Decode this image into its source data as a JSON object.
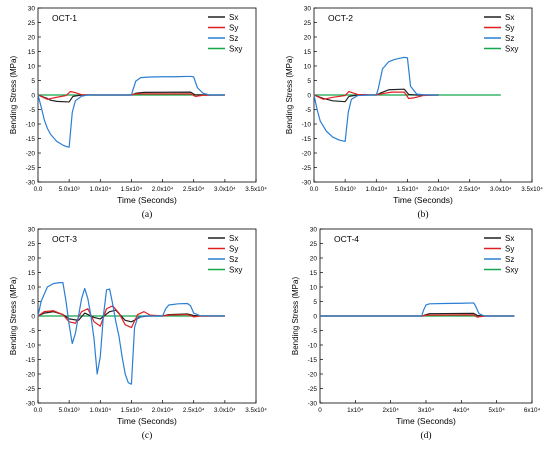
{
  "chart_data": [
    {
      "type": "line",
      "title": "OCT-1",
      "caption": "(a)",
      "xlabel": "Time (Seconds)",
      "ylabel": "Bending Stress (MPa)",
      "xlim": [
        0,
        35000
      ],
      "ylim": [
        -30,
        30
      ],
      "xticks": [
        0,
        5000,
        10000,
        15000,
        20000,
        25000,
        30000,
        35000
      ],
      "xtick_labels": [
        "0.0",
        "5.0x10³",
        "1.0x10⁴",
        "1.5x10⁴",
        "2.0x10⁴",
        "2.5x10⁴",
        "3.0x10⁴",
        "3.5x10⁴"
      ],
      "yticks": [
        -30,
        -25,
        -20,
        -15,
        -10,
        -5,
        0,
        5,
        10,
        15,
        20,
        25,
        30
      ],
      "ytick_labels": [
        "-30",
        "-25",
        "-20",
        "-15",
        "-10",
        "-5",
        "0",
        "5",
        "10",
        "15",
        "20",
        "25",
        "30"
      ],
      "legend_position": "top-right",
      "grid": false,
      "series": [
        {
          "name": "Sx",
          "color": "#222222",
          "x": [
            0,
            1500,
            2000,
            3000,
            5000,
            5600,
            7000,
            15000,
            15700,
            17000,
            24500,
            25200,
            27000,
            30000
          ],
          "y": [
            0,
            -1.2,
            -1.8,
            -2.2,
            -2.4,
            -0.5,
            0,
            0,
            0.6,
            0.9,
            1.0,
            0.1,
            0,
            0
          ]
        },
        {
          "name": "Sy",
          "color": "#e02020",
          "x": [
            0,
            1500,
            2500,
            4500,
            5200,
            6000,
            7000,
            9000,
            15000,
            15700,
            24500,
            25300,
            26500,
            30000
          ],
          "y": [
            0,
            -1.5,
            -1.0,
            -0.2,
            1.2,
            0.8,
            0.1,
            0,
            0,
            0.4,
            0.4,
            -0.5,
            -0.1,
            0
          ]
        },
        {
          "name": "Sz",
          "color": "#2a7fd4",
          "x": [
            0,
            500,
            1000,
            1500,
            2000,
            3000,
            4000,
            4600,
            5000,
            5500,
            6000,
            7000,
            8000,
            10000,
            15000,
            15200,
            15700,
            16500,
            18000,
            20000,
            22000,
            24000,
            24600,
            25000,
            25600,
            26500,
            27500,
            30000
          ],
          "y": [
            0,
            -4,
            -8.5,
            -11.5,
            -13.5,
            -16,
            -17.3,
            -17.8,
            -18,
            -6,
            -2,
            -0.4,
            0,
            0,
            0,
            1.5,
            4.8,
            6,
            6.2,
            6.3,
            6.3,
            6.4,
            6.4,
            6.2,
            2.5,
            0.6,
            0,
            0
          ]
        },
        {
          "name": "Sxy",
          "color": "#14a84a",
          "x": [
            0,
            30000
          ],
          "y": [
            0,
            0
          ]
        }
      ]
    },
    {
      "type": "line",
      "title": "OCT-2",
      "caption": "(b)",
      "xlabel": "Time (Seconds)",
      "ylabel": "Bending Stress (MPa)",
      "xlim": [
        0,
        35000
      ],
      "ylim": [
        -30,
        30
      ],
      "xticks": [
        0,
        5000,
        10000,
        15000,
        20000,
        25000,
        30000,
        35000
      ],
      "xtick_labels": [
        "0.0",
        "5.0x10³",
        "1.0x10⁴",
        "1.5x10⁴",
        "2.0x10⁴",
        "2.5x10⁴",
        "3.0x10⁴",
        "3.5x10⁴"
      ],
      "yticks": [
        -30,
        -25,
        -20,
        -15,
        -10,
        -5,
        0,
        5,
        10,
        15,
        20,
        25,
        30
      ],
      "ytick_labels": [
        "-30",
        "-25",
        "-20",
        "-15",
        "-10",
        "-5",
        "0",
        "5",
        "10",
        "15",
        "20",
        "25",
        "30"
      ],
      "legend_position": "top-right",
      "grid": false,
      "series": [
        {
          "name": "Sx",
          "color": "#222222",
          "x": [
            0,
            1500,
            3000,
            5000,
            5600,
            7000,
            10000,
            10800,
            12000,
            14500,
            15200,
            16500,
            20000
          ],
          "y": [
            0,
            -1.2,
            -2.0,
            -2.3,
            -0.5,
            0,
            0,
            0.8,
            1.8,
            2.0,
            0.2,
            0,
            0
          ]
        },
        {
          "name": "Sy",
          "color": "#e02020",
          "x": [
            0,
            1500,
            3000,
            5000,
            5600,
            7000,
            10000,
            10800,
            12500,
            14500,
            15200,
            16000,
            17500,
            20000
          ],
          "y": [
            0,
            -1.5,
            -0.8,
            -0.2,
            1.2,
            0.2,
            0,
            0.4,
            1.0,
            1.0,
            -1.2,
            -1.0,
            -0.2,
            0
          ]
        },
        {
          "name": "Sz",
          "color": "#2a7fd4",
          "x": [
            0,
            500,
            1000,
            2000,
            3000,
            4000,
            5000,
            5500,
            6000,
            7000,
            9000,
            10000,
            10300,
            11000,
            12000,
            13000,
            14500,
            15000,
            15500,
            16500,
            18000,
            20000
          ],
          "y": [
            0,
            -5,
            -9,
            -12.5,
            -14.5,
            -15.5,
            -16,
            -6,
            -1.5,
            -0.2,
            0,
            0,
            2,
            9,
            11.5,
            12.3,
            13,
            12.8,
            3,
            0.3,
            0,
            0
          ]
        },
        {
          "name": "Sxy",
          "color": "#14a84a",
          "x": [
            0,
            30000
          ],
          "y": [
            0,
            0
          ]
        }
      ]
    },
    {
      "type": "line",
      "title": "OCT-3",
      "caption": "(c)",
      "xlabel": "Time (Seconds)",
      "ylabel": "Bending Stress (MPa)",
      "xlim": [
        0,
        35000
      ],
      "ylim": [
        -30,
        30
      ],
      "xticks": [
        0,
        5000,
        10000,
        15000,
        20000,
        25000,
        30000,
        35000
      ],
      "xtick_labels": [
        "0.0",
        "5.0x10³",
        "1.0x10⁴",
        "1.5x10⁴",
        "2.0x10⁴",
        "2.5x10⁴",
        "3.0x10⁴",
        "3.5x10⁴"
      ],
      "yticks": [
        -30,
        -25,
        -20,
        -15,
        -10,
        -5,
        0,
        5,
        10,
        15,
        20,
        25,
        30
      ],
      "ytick_labels": [
        "-30",
        "-25",
        "-20",
        "-15",
        "-10",
        "-5",
        "0",
        "5",
        "10",
        "15",
        "20",
        "25",
        "30"
      ],
      "legend_position": "top-right",
      "grid": false,
      "series": [
        {
          "name": "Sx",
          "color": "#222222",
          "x": [
            0,
            1000,
            2500,
            4000,
            5000,
            6500,
            7500,
            9000,
            10000,
            11500,
            12500,
            14000,
            15000,
            16500,
            17500,
            20000,
            21000,
            24000,
            25000,
            26000,
            30000
          ],
          "y": [
            0,
            1.0,
            1.5,
            0.5,
            -1.0,
            -1.5,
            1.0,
            -0.5,
            -1.0,
            1.5,
            2.0,
            -1.5,
            -2.0,
            -0.3,
            0,
            0,
            0.5,
            0.7,
            0.2,
            0,
            0
          ]
        },
        {
          "name": "Sy",
          "color": "#e02020",
          "x": [
            0,
            1000,
            2500,
            4000,
            5000,
            6000,
            7000,
            8000,
            9000,
            10000,
            11000,
            12000,
            13000,
            14000,
            15000,
            16000,
            17000,
            18000,
            20000,
            21000,
            24000,
            25000,
            26000,
            30000
          ],
          "y": [
            0,
            1.5,
            1.8,
            0.5,
            -2.0,
            -2.5,
            1.5,
            2.5,
            -2.0,
            -3.5,
            2.5,
            3.5,
            1.0,
            -3.0,
            -4.0,
            0.5,
            1.5,
            0.3,
            0,
            0.3,
            0.5,
            -0.3,
            0,
            0
          ]
        },
        {
          "name": "Sz",
          "color": "#2a7fd4",
          "x": [
            0,
            500,
            1500,
            2500,
            3500,
            4000,
            4500,
            5000,
            5500,
            6000,
            6500,
            7000,
            7500,
            8000,
            8500,
            9000,
            9500,
            10000,
            10500,
            11000,
            11500,
            12000,
            12500,
            13000,
            13500,
            14000,
            14500,
            15000,
            15500,
            16000,
            17000,
            18000,
            20000,
            20500,
            21000,
            22500,
            24000,
            24500,
            25000,
            26000,
            30000
          ],
          "y": [
            0,
            5,
            10,
            11.2,
            11.5,
            11.5,
            5,
            -3,
            -9.5,
            -6,
            0,
            6,
            9.5,
            6,
            0,
            -8,
            -20,
            -14,
            0,
            9,
            9.3,
            4,
            -2,
            -7,
            -14,
            -20,
            -23,
            -23.5,
            -4,
            -0.5,
            0,
            0,
            0,
            2.5,
            3.8,
            4.2,
            4.3,
            3.5,
            1,
            0.1,
            0
          ]
        },
        {
          "name": "Sxy",
          "color": "#14a84a",
          "x": [
            0,
            30000
          ],
          "y": [
            0,
            0
          ]
        }
      ]
    },
    {
      "type": "line",
      "title": "OCT-4",
      "caption": "(d)",
      "xlabel": "Time (Seconds)",
      "ylabel": "Bending Stress (MPa)",
      "xlim": [
        0,
        60000
      ],
      "ylim": [
        -30,
        30
      ],
      "xticks": [
        0,
        10000,
        20000,
        30000,
        40000,
        50000,
        60000
      ],
      "xtick_labels": [
        "0",
        "1x10⁴",
        "2x10⁴",
        "3x10⁴",
        "4x10⁴",
        "5x10⁴",
        "6x10⁴"
      ],
      "yticks": [
        -30,
        -25,
        -20,
        -15,
        -10,
        -5,
        0,
        5,
        10,
        15,
        20,
        25,
        30
      ],
      "ytick_labels": [
        "-30",
        "-25",
        "-20",
        "-15",
        "-10",
        "-5",
        "0",
        "5",
        "10",
        "15",
        "20",
        "25",
        "30"
      ],
      "legend_position": "top-right",
      "grid": false,
      "series": [
        {
          "name": "Sx",
          "color": "#222222",
          "x": [
            0,
            29000,
            30000,
            31000,
            43500,
            44500,
            46000,
            55000
          ],
          "y": [
            0,
            0,
            0.5,
            0.8,
            0.9,
            0.2,
            0,
            0
          ]
        },
        {
          "name": "Sy",
          "color": "#e02020",
          "x": [
            0,
            29000,
            30000,
            43500,
            44500,
            45500,
            47000,
            55000
          ],
          "y": [
            0,
            0,
            0.3,
            0.4,
            -0.4,
            -0.2,
            0,
            0
          ]
        },
        {
          "name": "Sz",
          "color": "#2a7fd4",
          "x": [
            0,
            28800,
            29300,
            30000,
            31000,
            35000,
            40000,
            43500,
            44000,
            45000,
            46500,
            55000
          ],
          "y": [
            0,
            0,
            2,
            3.8,
            4.2,
            4.3,
            4.4,
            4.5,
            3.5,
            0.8,
            0,
            0
          ]
        },
        {
          "name": "Sxy",
          "color": "#14a84a",
          "x": [
            0,
            55000
          ],
          "y": [
            0,
            0
          ]
        }
      ]
    }
  ]
}
